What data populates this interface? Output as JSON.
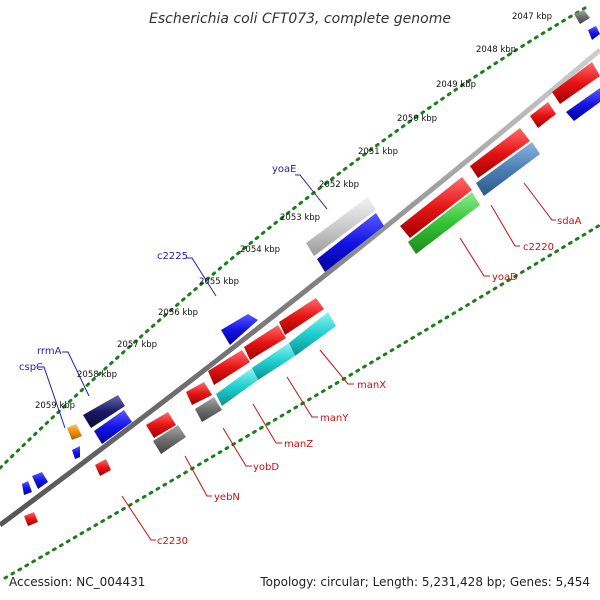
{
  "title": "Escherichia coli CFT073, complete genome",
  "footer": {
    "accession": "Accession: NC_004431",
    "summary": "Topology: circular; Length: 5,231,428 bp; Genes: 5,454"
  },
  "tick_labels": [
    "2047 kbp",
    "2048 kbp",
    "2049 kbp",
    "2050 kbp",
    "2051 kbp",
    "2052 kbp",
    "2053 kbp",
    "2054 kbp",
    "2055 kbp",
    "2056 kbp",
    "2057 kbp",
    "2058 kbp",
    "2059 kbp"
  ],
  "outer_gene_labels": [
    "yoaE",
    "c2225",
    "rrmA",
    "cspC"
  ],
  "inner_gene_labels": [
    "sdaA",
    "c2220",
    "yoaD",
    "manX",
    "manY",
    "manZ",
    "yobD",
    "yebN",
    "c2230"
  ],
  "colors": {
    "forward_cds": "#1414e6",
    "reverse_cds": "#e61414",
    "grey_gene": "#6e6e6e",
    "light_grey_gene": "#c8c8c8",
    "navy_gene": "#1a1a66",
    "cyan_gene": "#1ecfcf",
    "green_gene": "#33c433",
    "steel_blue_gene": "#4a7fb5",
    "orange_gene": "#f08c00",
    "tick_dots": "#1a7f1a",
    "backbone": "#888888",
    "label_blue": "#1f1fb4",
    "label_red": "#c81010"
  }
}
